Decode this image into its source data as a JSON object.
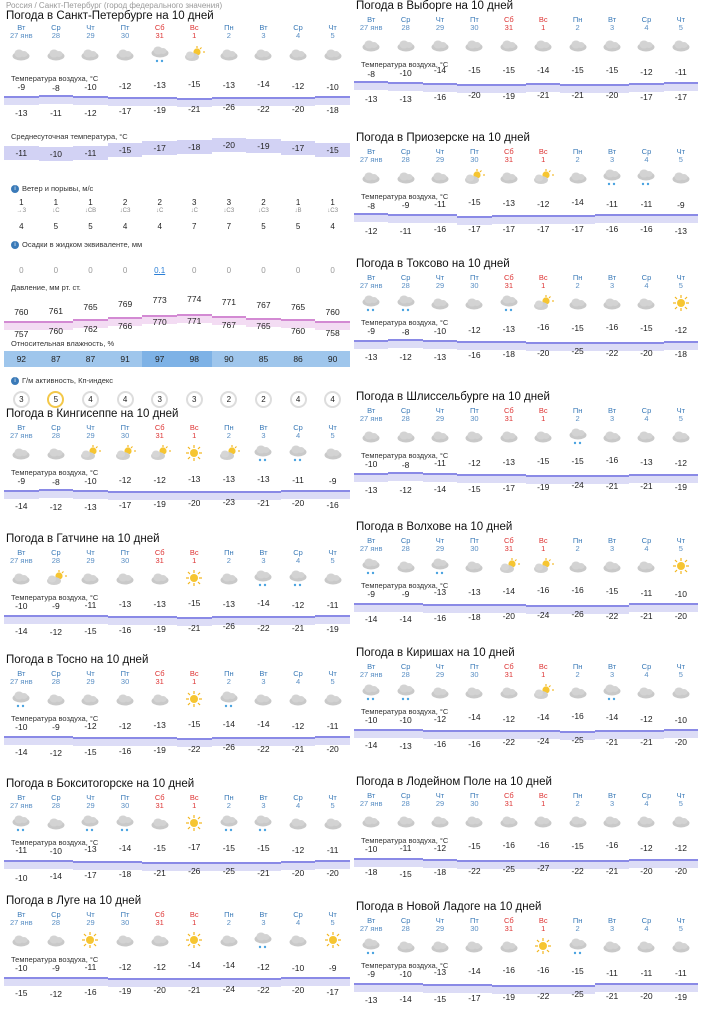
{
  "breadcrumb": "Россия / Санкт-Петербург (город федерального значения)",
  "day_names": [
    "Вт",
    "Ср",
    "Чт",
    "Пт",
    "Сб",
    "Вс",
    "Пн",
    "Вт",
    "Ср",
    "Чт"
  ],
  "dates": [
    "27 янв",
    "28",
    "29",
    "30",
    "31",
    "1",
    "2",
    "3",
    "4",
    "5"
  ],
  "weekend_indices": [
    4,
    5
  ],
  "labels": {
    "temp": "Температура воздуха, °C",
    "avg": "Среднесуточная температура, °C",
    "wind": "Ветер и порывы, м/с",
    "precip": "Осадки в жидком эквиваленте, мм",
    "pressure": "Давление, мм рт. ст.",
    "humidity": "Относительная влажность, %",
    "geo": "Г/м активность, Кп-индекс"
  },
  "colors": {
    "title": "#111",
    "day": "#3a7ab8",
    "weekend": "#d33",
    "band": "#8a8ae6",
    "humidity": "#9fc6ec"
  },
  "spb": {
    "title": "Погода в Санкт-Петербурге на 10 дней",
    "icons": [
      "cloud",
      "cloud",
      "cloud",
      "cloud",
      "cloud-snow",
      "sun-cloud",
      "cloud",
      "cloud",
      "cloud",
      "cloud"
    ],
    "tmax": [
      -9,
      -8,
      -10,
      -12,
      -13,
      -15,
      -13,
      -14,
      -12,
      -10
    ],
    "tmin": [
      -13,
      -11,
      -12,
      -17,
      -19,
      -21,
      -26,
      -22,
      -20,
      -18
    ],
    "avg": [
      -11,
      -10,
      -11,
      -15,
      -17,
      -18,
      -20,
      -19,
      -17,
      -15
    ],
    "wind": [
      1,
      1,
      1,
      2,
      2,
      3,
      3,
      2,
      1,
      1
    ],
    "wind_dir": [
      "→З",
      "↓С",
      "↓СВ",
      "↓СЗ",
      "↓С",
      "↓С",
      "↓СЗ",
      "↓СЗ",
      "↓В",
      "↓СЗ"
    ],
    "gust": [
      4,
      5,
      5,
      4,
      4,
      7,
      7,
      5,
      5,
      4
    ],
    "precip": [
      "0",
      "0",
      "0",
      "0",
      "0.1",
      "0",
      "0",
      "0",
      "0",
      "0"
    ],
    "pressure_max": [
      760,
      761,
      765,
      769,
      773,
      774,
      771,
      767,
      765,
      760
    ],
    "pressure_min": [
      757,
      760,
      762,
      766,
      770,
      771,
      767,
      765,
      760,
      758
    ],
    "humidity": [
      92,
      87,
      87,
      91,
      97,
      98,
      90,
      85,
      86,
      90
    ],
    "kp": [
      3,
      5,
      4,
      4,
      3,
      3,
      2,
      2,
      4,
      4
    ]
  },
  "cities": [
    {
      "title": "Погода в Кингисеппе на 10 дней",
      "icons": [
        "cloud",
        "cloud",
        "sun-cloud",
        "sun-cloud",
        "sun-cloud",
        "sun",
        "sun-cloud",
        "cloud-snow",
        "cloud-snow",
        "cloud"
      ],
      "tmax": [
        -9,
        -8,
        -10,
        -12,
        -12,
        -13,
        -13,
        -13,
        -11,
        -9
      ],
      "tmin": [
        -14,
        -12,
        -13,
        -17,
        -19,
        -20,
        -23,
        -21,
        -20,
        -16
      ]
    },
    {
      "title": "Погода в Гатчине на 10 дней",
      "icons": [
        "cloud",
        "sun-cloud",
        "cloud",
        "cloud",
        "cloud",
        "sun",
        "cloud",
        "cloud-snow",
        "cloud-snow",
        "cloud"
      ],
      "tmax": [
        -10,
        -9,
        -11,
        -13,
        -13,
        -15,
        -13,
        -14,
        -12,
        -11
      ],
      "tmin": [
        -14,
        -12,
        -15,
        -16,
        -19,
        -21,
        -26,
        -22,
        -21,
        -19
      ]
    },
    {
      "title": "Погода в Тосно на 10 дней",
      "icons": [
        "cloud-snow",
        "cloud",
        "cloud",
        "cloud",
        "cloud",
        "sun",
        "cloud-snow",
        "cloud",
        "cloud",
        "cloud"
      ],
      "tmax": [
        -10,
        -9,
        -12,
        -12,
        -13,
        -15,
        -14,
        -14,
        -12,
        -11
      ],
      "tmin": [
        -14,
        -12,
        -15,
        -16,
        -19,
        -22,
        -26,
        -22,
        -21,
        -20
      ]
    },
    {
      "title": "Погода в Бокситогорске на 10 дней",
      "icons": [
        "cloud-snow",
        "cloud",
        "cloud-snow",
        "cloud-snow",
        "cloud",
        "sun",
        "cloud-snow",
        "cloud-snow",
        "cloud",
        "cloud"
      ],
      "tmax": [
        -11,
        -10,
        -13,
        -14,
        -15,
        -17,
        -15,
        -15,
        -12,
        -11
      ],
      "tmin": [
        -10,
        -14,
        -17,
        -18,
        -21,
        -26,
        -25,
        -21,
        -20,
        -20
      ]
    },
    {
      "title": "Погода в Луге на 10 дней",
      "icons": [
        "cloud",
        "cloud",
        "sun",
        "cloud",
        "cloud",
        "sun",
        "cloud",
        "cloud-snow",
        "cloud",
        "sun"
      ],
      "tmax": [
        -10,
        -9,
        -11,
        -12,
        -12,
        -14,
        -14,
        -12,
        -10,
        -9
      ],
      "tmin": [
        -15,
        -12,
        -16,
        -19,
        -20,
        -21,
        -24,
        -22,
        -20,
        -17
      ]
    }
  ],
  "right_cities": [
    {
      "title": "Погода в Выборге на 10 дней",
      "icons": [
        "cloud",
        "cloud",
        "cloud",
        "cloud",
        "cloud",
        "cloud",
        "cloud",
        "cloud",
        "cloud",
        "cloud"
      ],
      "tmax": [
        -8,
        -10,
        -14,
        -15,
        -15,
        -14,
        -15,
        -15,
        -12,
        -11
      ],
      "tmin": [
        -13,
        -13,
        -16,
        -20,
        -19,
        -21,
        -21,
        -20,
        -17,
        -17
      ]
    },
    {
      "title": "Погода в Приозерске на 10 дней",
      "icons": [
        "cloud",
        "cloud",
        "cloud",
        "sun-cloud",
        "cloud",
        "sun-cloud",
        "cloud",
        "cloud-snow",
        "cloud-snow",
        "cloud"
      ],
      "tmax": [
        -8,
        -9,
        -11,
        -15,
        -13,
        -12,
        -14,
        -11,
        -11,
        -9
      ],
      "tmin": [
        -12,
        -11,
        -16,
        -17,
        -17,
        -17,
        -17,
        -16,
        -16,
        -13
      ]
    },
    {
      "title": "Погода в Токсово на 10 дней",
      "icons": [
        "cloud-snow",
        "cloud-snow",
        "cloud",
        "cloud",
        "cloud-snow",
        "sun-cloud",
        "cloud",
        "cloud",
        "cloud",
        "sun"
      ],
      "tmax": [
        -9,
        -8,
        -10,
        -12,
        -13,
        -16,
        -15,
        -16,
        -15,
        -12
      ],
      "tmin": [
        -13,
        -12,
        -13,
        -16,
        -18,
        -20,
        -25,
        -22,
        -20,
        -18
      ]
    },
    {
      "title": "Погода в Шлиссельбурге на 10 дней",
      "icons": [
        "cloud",
        "cloud",
        "cloud",
        "cloud",
        "cloud",
        "cloud",
        "cloud-snow",
        "cloud",
        "cloud",
        "cloud"
      ],
      "tmax": [
        -10,
        -8,
        -11,
        -12,
        -13,
        -15,
        -15,
        -16,
        -13,
        -12
      ],
      "tmin": [
        -13,
        -12,
        -14,
        -15,
        -17,
        -19,
        -24,
        -21,
        -21,
        -19
      ]
    },
    {
      "title": "Погода в Волхове на 10 дней",
      "icons": [
        "cloud-snow",
        "cloud",
        "cloud-snow",
        "cloud",
        "sun-cloud",
        "sun-cloud",
        "cloud",
        "cloud",
        "cloud",
        "sun"
      ],
      "tmax": [
        -9,
        -9,
        -13,
        -13,
        -14,
        -16,
        -16,
        -15,
        -11,
        -10
      ],
      "tmin": [
        -14,
        -14,
        -16,
        -18,
        -20,
        -24,
        -26,
        -22,
        -21,
        -20
      ]
    },
    {
      "title": "Погода в Киришах на 10 дней",
      "icons": [
        "cloud-snow",
        "cloud-snow",
        "cloud",
        "cloud",
        "cloud",
        "sun-cloud",
        "cloud",
        "cloud-snow",
        "cloud",
        "cloud"
      ],
      "tmax": [
        -10,
        -10,
        -12,
        -14,
        -12,
        -14,
        -16,
        -14,
        -12,
        -10
      ],
      "tmin": [
        -14,
        -13,
        -16,
        -16,
        -22,
        -24,
        -25,
        -21,
        -21,
        -20
      ]
    },
    {
      "title": "Погода в Лодейном Поле на 10 дней",
      "icons": [
        "cloud",
        "cloud",
        "cloud",
        "cloud",
        "cloud",
        "cloud",
        "cloud",
        "cloud",
        "cloud",
        "cloud"
      ],
      "tmax": [
        -10,
        -11,
        -12,
        -15,
        -16,
        -16,
        -15,
        -16,
        -12,
        -12
      ],
      "tmin": [
        -18,
        -15,
        -18,
        -22,
        -25,
        -27,
        -22,
        -21,
        -20,
        -20
      ]
    },
    {
      "title": "Погода в Новой Ладоге на 10 дней",
      "icons": [
        "cloud-snow",
        "cloud",
        "cloud",
        "cloud",
        "cloud",
        "sun",
        "cloud-snow",
        "cloud",
        "cloud",
        "cloud"
      ],
      "tmax": [
        -9,
        -10,
        -13,
        -14,
        -16,
        -16,
        -15,
        -11,
        -11,
        -11
      ],
      "tmin": [
        -13,
        -14,
        -15,
        -17,
        -19,
        -22,
        -25,
        -21,
        -20,
        -19
      ]
    }
  ]
}
